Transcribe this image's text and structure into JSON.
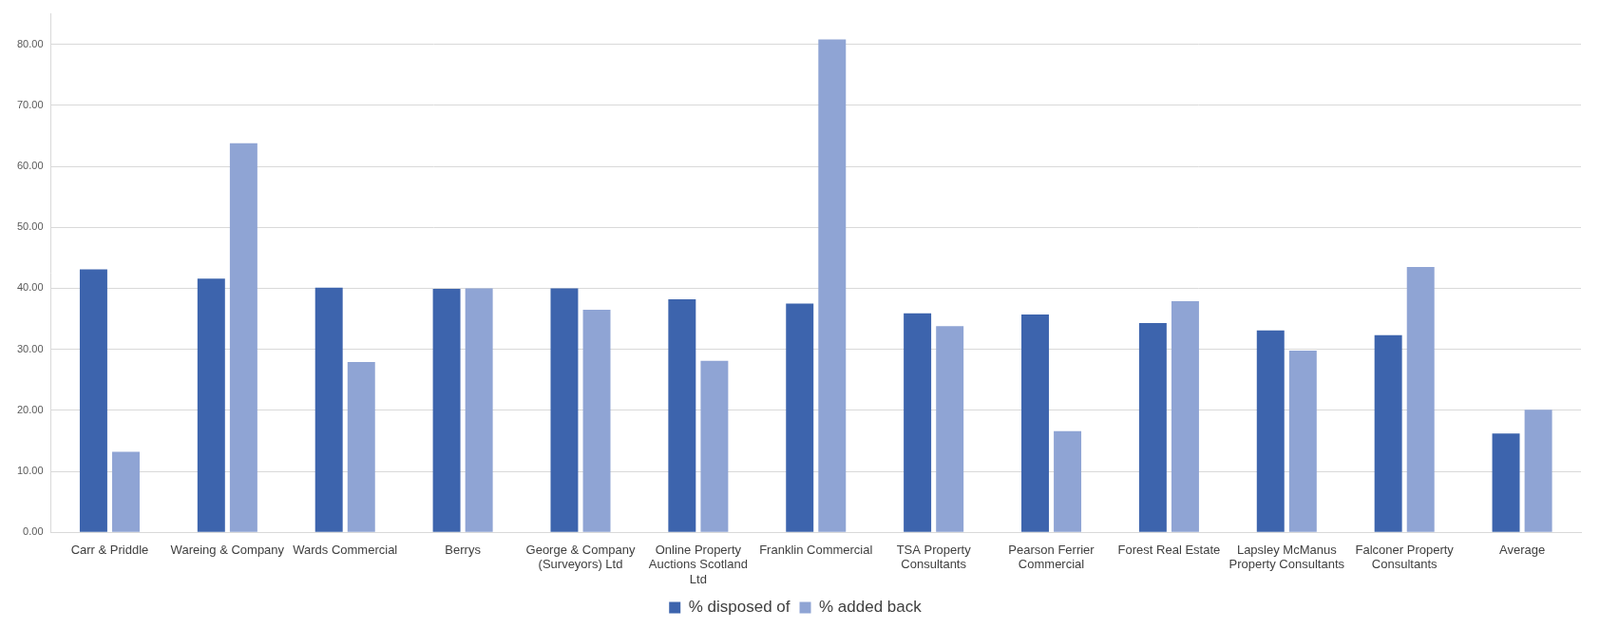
{
  "chart_data": {
    "type": "bar",
    "categories": [
      "Carr & Priddle",
      "Wareing & Company",
      "Wards Commercial",
      "Berrys",
      "George & Company (Surveyors) Ltd",
      "Online Property Auctions Scotland Ltd",
      "Franklin Commercial",
      "TSA Property Consultants",
      "Pearson Ferrier Commercial",
      "Forest Real Estate",
      "Lapsley McManus Property Consultants",
      "Falconer Property Consultants",
      "Average"
    ],
    "series": [
      {
        "name": "% disposed of",
        "color": "#3d64ad",
        "values": [
          43.1,
          41.6,
          40.1,
          39.9,
          40.0,
          38.2,
          37.5,
          35.9,
          35.7,
          34.3,
          33.1,
          32.3,
          16.2
        ]
      },
      {
        "name": "% added back",
        "color": "#8fa4d4",
        "values": [
          13.2,
          63.8,
          27.9,
          40.0,
          36.5,
          28.1,
          80.8,
          33.8,
          16.6,
          37.9,
          29.8,
          43.5,
          20.1
        ]
      }
    ],
    "ylim": [
      0,
      85
    ],
    "yticks": [
      {
        "value": 0,
        "label": "0.00"
      },
      {
        "value": 10,
        "label": "10.00"
      },
      {
        "value": 20,
        "label": "20.00"
      },
      {
        "value": 30,
        "label": "30.00"
      },
      {
        "value": 40,
        "label": "40.00"
      },
      {
        "value": 50,
        "label": "50.00"
      },
      {
        "value": 60,
        "label": "60.00"
      },
      {
        "value": 70,
        "label": "70.00"
      },
      {
        "value": 80,
        "label": "80.00"
      }
    ],
    "grid": true,
    "legend": "bottom"
  }
}
